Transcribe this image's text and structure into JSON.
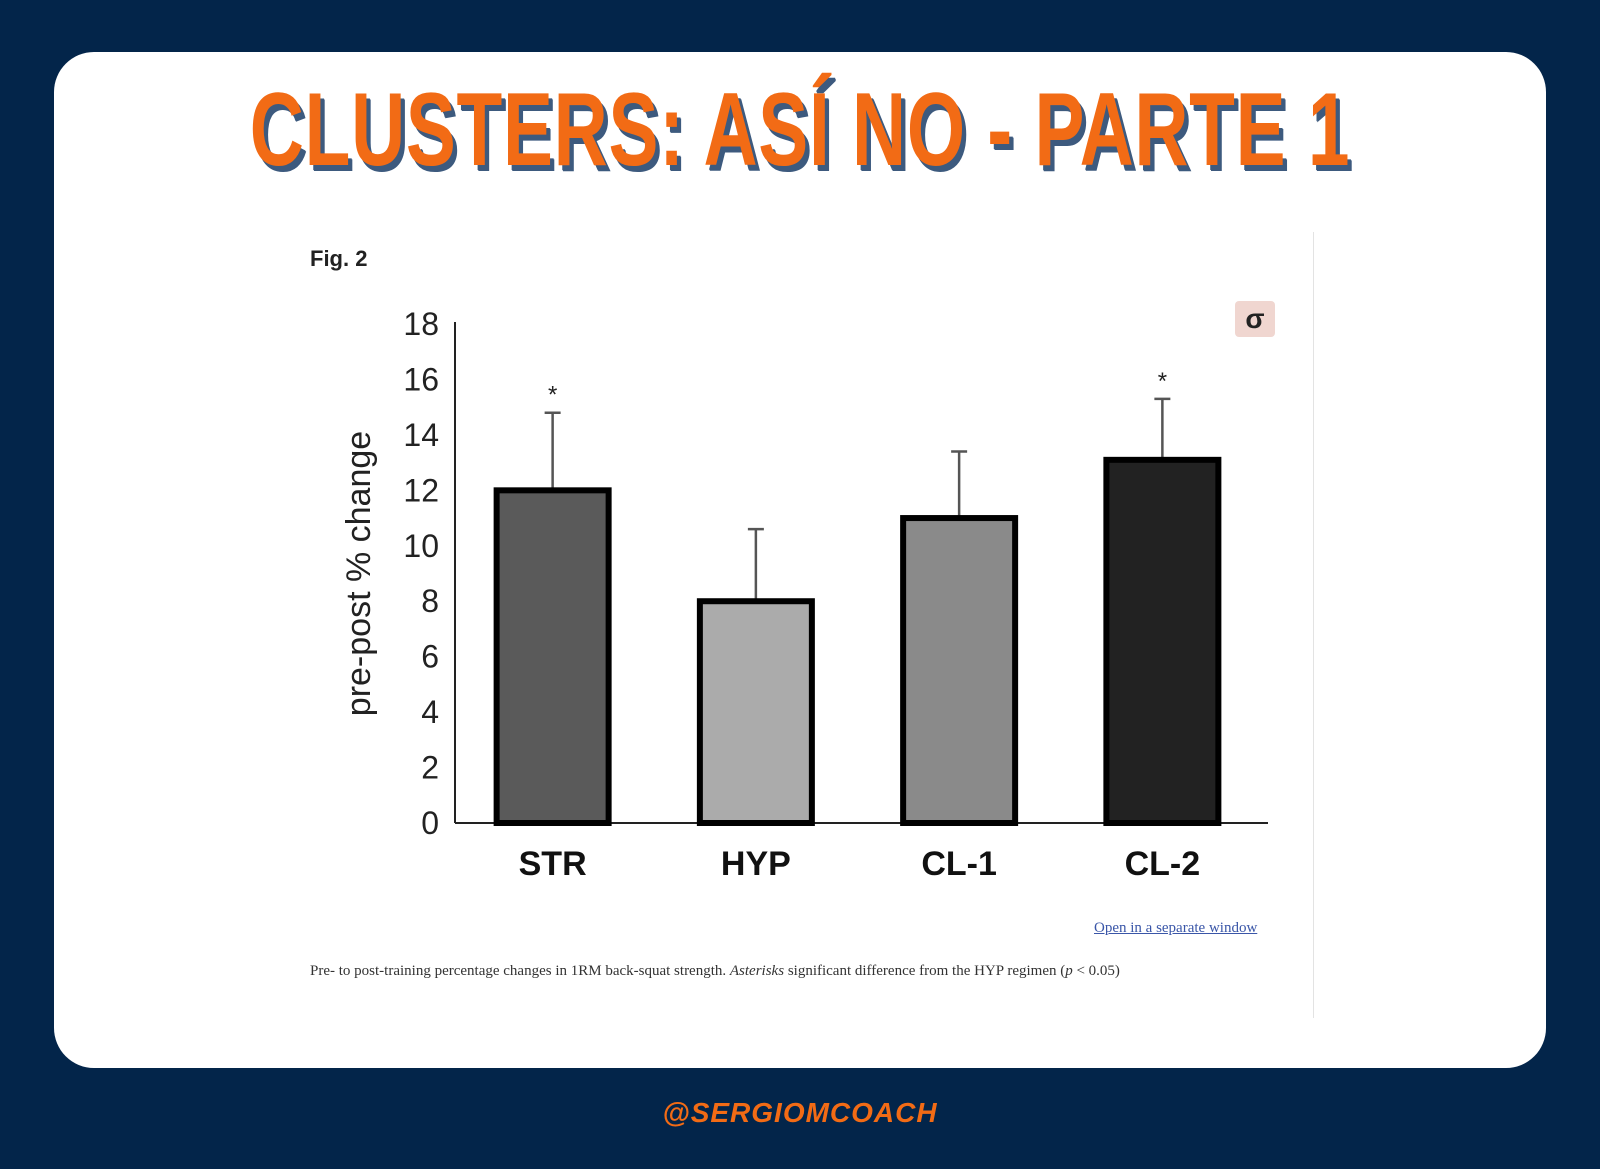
{
  "title": "CLUSTERS: ASÍ NO - PARTE 1",
  "figure_label": "Fig. 2",
  "badge_symbol": "σ",
  "open_link": "Open in a separate window",
  "caption": {
    "part1": "Pre- to post-training percentage changes in 1RM back-squat strength. ",
    "italic": "Asterisks",
    "part2": " significant difference from the HYP regimen (",
    "p_italic": "p",
    "part3": " < 0.05)"
  },
  "handle": "@SERGIOMCOACH",
  "chart_data": {
    "type": "bar",
    "categories": [
      "STR",
      "HYP",
      "CL-1",
      "CL-2"
    ],
    "values": [
      12.0,
      8.0,
      11.0,
      13.1
    ],
    "error_upper": [
      14.8,
      10.6,
      13.4,
      15.3
    ],
    "significant": [
      true,
      false,
      false,
      true
    ],
    "significance_marker": "*",
    "ylabel": "pre-post % change",
    "xlabel": "",
    "ylim": [
      0,
      18
    ],
    "yticks": [
      0,
      2,
      4,
      6,
      8,
      10,
      12,
      14,
      16,
      18
    ],
    "bar_colors": [
      "#5a5a5a",
      "#ababab",
      "#8a8a8a",
      "#222222"
    ],
    "grid": false
  }
}
